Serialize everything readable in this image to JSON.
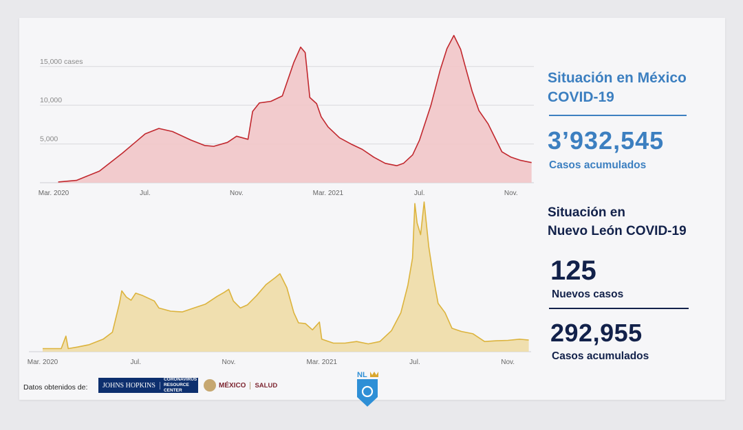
{
  "sidebar": {
    "mexico": {
      "title_line1": "Situación en México",
      "title_line2": "COVID-19",
      "total_cases": "3’932,545",
      "total_label": "Casos acumulados"
    },
    "nuevo_leon": {
      "title_line1": "Situación en",
      "title_line2": "Nuevo León COVID-19",
      "new_cases": "125",
      "new_label": "Nuevos casos",
      "total_cases": "292,955",
      "total_label": "Casos acumulados"
    }
  },
  "footer": {
    "source_label": "Datos obtenidos de:",
    "jhu_name": "JOHNS HOPKINS",
    "jhu_center_line1": "CORONAVIRUS",
    "jhu_center_line2": "RESOURCE CENTER",
    "gob_name": "MÉXICO",
    "gob_dept": "SALUD",
    "nl_logo_text": "NL"
  },
  "colors": {
    "mexico_line": "#c1272d",
    "mexico_fill": "#f2c6c8",
    "nl_line": "#dcb33c",
    "nl_fill": "#efdda6",
    "mexico_text": "#3c7fc0",
    "nl_text": "#12214a"
  },
  "chart_data": [
    {
      "type": "area",
      "series_name": "México",
      "xlim": [
        0,
        21
      ],
      "ylim": [
        0,
        19500
      ],
      "x_ticks": [
        {
          "x": 0,
          "label": "Mar. 2020"
        },
        {
          "x": 4,
          "label": "Jul."
        },
        {
          "x": 8,
          "label": "Nov."
        },
        {
          "x": 12,
          "label": "Mar. 2021"
        },
        {
          "x": 16,
          "label": "Jul."
        },
        {
          "x": 20,
          "label": "Nov."
        }
      ],
      "y_ticks": [
        {
          "y": 5000,
          "label": "5,000"
        },
        {
          "y": 10000,
          "label": "10,000"
        },
        {
          "y": 15000,
          "label": "15,000 cases"
        }
      ],
      "points": [
        [
          0.2,
          100
        ],
        [
          1.0,
          300
        ],
        [
          2.0,
          1500
        ],
        [
          3.0,
          3800
        ],
        [
          3.6,
          5300
        ],
        [
          4.0,
          6300
        ],
        [
          4.6,
          7000
        ],
        [
          5.2,
          6600
        ],
        [
          6.0,
          5500
        ],
        [
          6.6,
          4800
        ],
        [
          7.0,
          4700
        ],
        [
          7.6,
          5200
        ],
        [
          8.0,
          6000
        ],
        [
          8.5,
          5600
        ],
        [
          8.7,
          9200
        ],
        [
          9.0,
          10300
        ],
        [
          9.5,
          10500
        ],
        [
          10.0,
          11200
        ],
        [
          10.5,
          15500
        ],
        [
          10.8,
          17500
        ],
        [
          11.0,
          16800
        ],
        [
          11.2,
          11000
        ],
        [
          11.5,
          10200
        ],
        [
          11.7,
          8500
        ],
        [
          12.0,
          7200
        ],
        [
          12.5,
          5800
        ],
        [
          13.0,
          5000
        ],
        [
          13.5,
          4300
        ],
        [
          14.0,
          3300
        ],
        [
          14.5,
          2500
        ],
        [
          15.0,
          2200
        ],
        [
          15.3,
          2500
        ],
        [
          15.7,
          3600
        ],
        [
          16.0,
          5500
        ],
        [
          16.5,
          10000
        ],
        [
          16.9,
          14500
        ],
        [
          17.2,
          17300
        ],
        [
          17.5,
          19000
        ],
        [
          17.8,
          17200
        ],
        [
          18.0,
          15000
        ],
        [
          18.3,
          11800
        ],
        [
          18.6,
          9300
        ],
        [
          19.0,
          7600
        ],
        [
          19.3,
          5800
        ],
        [
          19.6,
          4000
        ],
        [
          20.0,
          3300
        ],
        [
          20.4,
          2900
        ],
        [
          20.9,
          2600
        ]
      ]
    },
    {
      "type": "area",
      "series_name": "Nuevo León",
      "xlim": [
        0,
        21
      ],
      "ylim": [
        0,
        1920
      ],
      "x_ticks": [
        {
          "x": 0,
          "label": "Mar. 2020"
        },
        {
          "x": 4,
          "label": "Jul."
        },
        {
          "x": 8,
          "label": "Nov."
        },
        {
          "x": 12,
          "label": "Mar. 2021"
        },
        {
          "x": 16,
          "label": "Jul."
        },
        {
          "x": 20,
          "label": "Nov."
        }
      ],
      "points": [
        [
          0.0,
          40
        ],
        [
          0.8,
          40
        ],
        [
          1.0,
          200
        ],
        [
          1.1,
          40
        ],
        [
          1.5,
          60
        ],
        [
          2.0,
          90
        ],
        [
          2.6,
          160
        ],
        [
          3.0,
          250
        ],
        [
          3.3,
          620
        ],
        [
          3.4,
          780
        ],
        [
          3.6,
          700
        ],
        [
          3.8,
          660
        ],
        [
          4.0,
          750
        ],
        [
          4.3,
          720
        ],
        [
          4.8,
          650
        ],
        [
          5.0,
          560
        ],
        [
          5.5,
          520
        ],
        [
          6.0,
          510
        ],
        [
          6.5,
          560
        ],
        [
          7.0,
          610
        ],
        [
          7.5,
          710
        ],
        [
          7.8,
          760
        ],
        [
          8.0,
          800
        ],
        [
          8.2,
          650
        ],
        [
          8.5,
          560
        ],
        [
          8.8,
          600
        ],
        [
          9.2,
          720
        ],
        [
          9.6,
          860
        ],
        [
          10.0,
          950
        ],
        [
          10.2,
          1000
        ],
        [
          10.5,
          820
        ],
        [
          10.8,
          500
        ],
        [
          11.0,
          370
        ],
        [
          11.3,
          360
        ],
        [
          11.6,
          280
        ],
        [
          11.9,
          380
        ],
        [
          12.0,
          160
        ],
        [
          12.5,
          110
        ],
        [
          13.0,
          110
        ],
        [
          13.5,
          130
        ],
        [
          14.0,
          100
        ],
        [
          14.5,
          130
        ],
        [
          15.0,
          270
        ],
        [
          15.4,
          500
        ],
        [
          15.7,
          850
        ],
        [
          15.9,
          1200
        ],
        [
          16.0,
          1900
        ],
        [
          16.1,
          1650
        ],
        [
          16.25,
          1500
        ],
        [
          16.4,
          1920
        ],
        [
          16.6,
          1350
        ],
        [
          16.8,
          950
        ],
        [
          17.0,
          620
        ],
        [
          17.3,
          500
        ],
        [
          17.6,
          300
        ],
        [
          18.0,
          260
        ],
        [
          18.5,
          230
        ],
        [
          19.0,
          130
        ],
        [
          19.5,
          140
        ],
        [
          20.0,
          145
        ],
        [
          20.5,
          160
        ],
        [
          20.9,
          150
        ]
      ]
    }
  ]
}
